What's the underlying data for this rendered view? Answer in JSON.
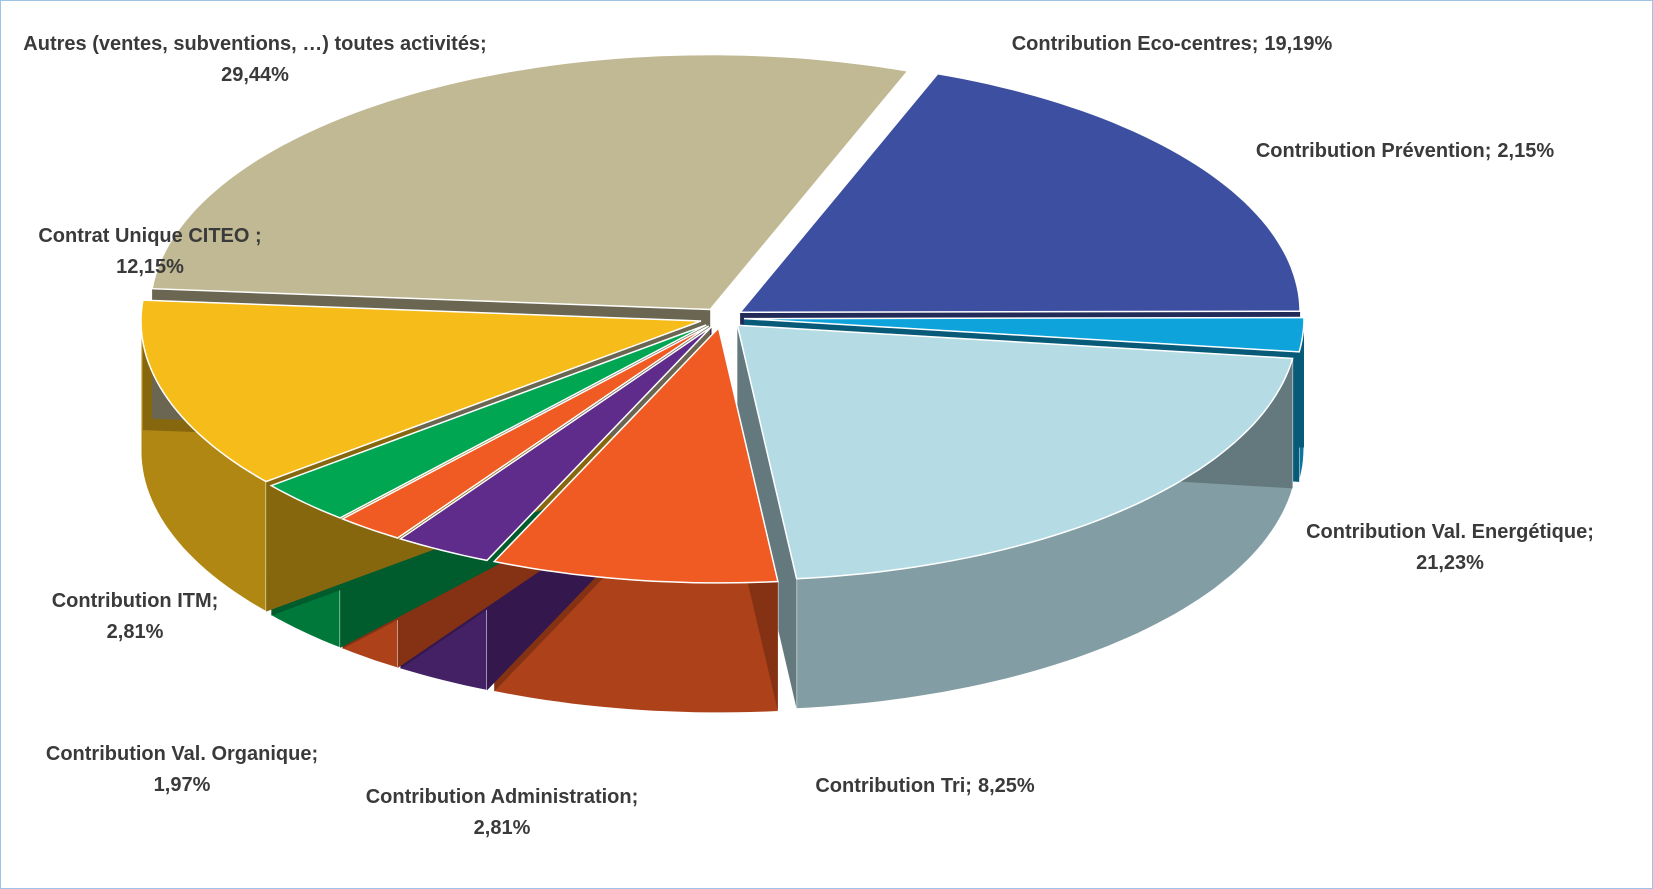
{
  "chart_data": {
    "type": "pie3d",
    "categories": [
      "Contribution Eco-centres;",
      "Contribution Prévention;",
      "Contribution Val. Energétique;",
      "Contribution Tri;",
      "Contribution Administration;",
      "Contribution Val. Organique;",
      "Contribution ITM;",
      "Contrat Unique CITEO ;",
      "Autres (ventes, subventions, …) toutes activités;"
    ],
    "values": [
      19.19,
      2.15,
      21.23,
      8.25,
      2.81,
      1.97,
      2.81,
      12.15,
      29.44
    ],
    "value_labels": [
      "19,19%",
      "2,15%",
      "21,23%",
      "8,25%",
      "2,81%",
      "1,97%",
      "2,81%",
      "12,15%",
      "29,44%"
    ],
    "colors": [
      "#3d4fa0",
      "#0fa3dc",
      "#b5dce4",
      "#f05a23",
      "#5f2c8c",
      "#f05a23",
      "#00a651",
      "#f6bc1a",
      "#c0b994"
    ]
  }
}
